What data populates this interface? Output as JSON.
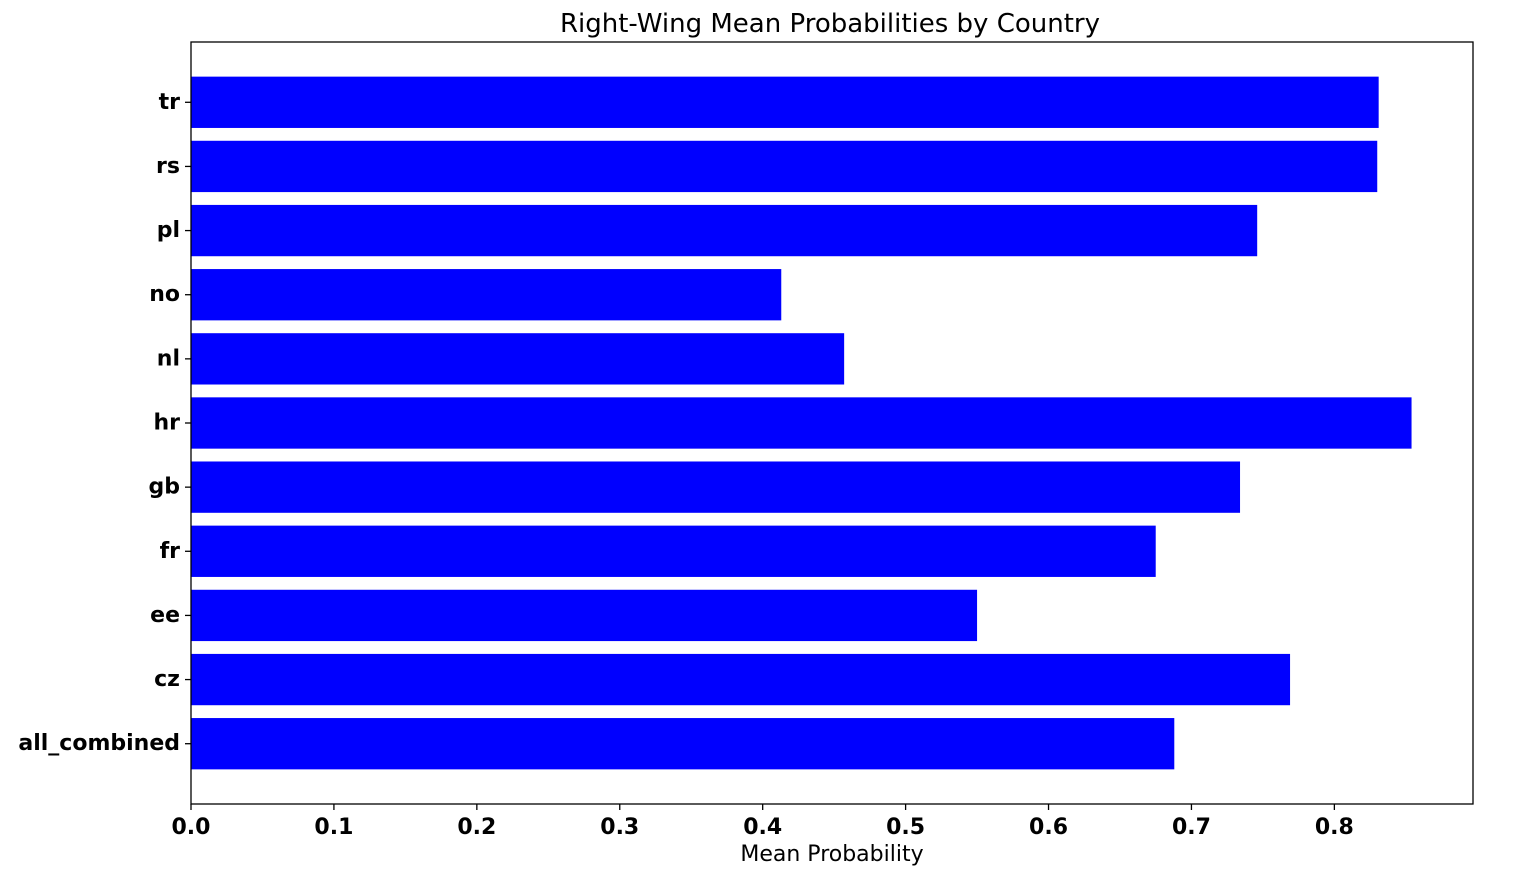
{
  "chart_data": {
    "type": "bar",
    "orientation": "horizontal",
    "title": "Right-Wing Mean Probabilities by Country",
    "xlabel": "Mean Probability",
    "ylabel": "",
    "xlim": [
      0.0,
      0.897
    ],
    "xticks": [
      0.0,
      0.1,
      0.2,
      0.3,
      0.4,
      0.5,
      0.6,
      0.7,
      0.8
    ],
    "xtick_labels": [
      "0.0",
      "0.1",
      "0.2",
      "0.3",
      "0.4",
      "0.5",
      "0.6",
      "0.7",
      "0.8"
    ],
    "categories": [
      "all_combined",
      "cz",
      "ee",
      "fr",
      "gb",
      "hr",
      "nl",
      "no",
      "pl",
      "rs",
      "tr"
    ],
    "values": [
      0.688,
      0.769,
      0.55,
      0.675,
      0.734,
      0.854,
      0.457,
      0.413,
      0.746,
      0.83,
      0.831
    ],
    "bar_color": "#0000ff",
    "grid": false,
    "legend": false
  }
}
